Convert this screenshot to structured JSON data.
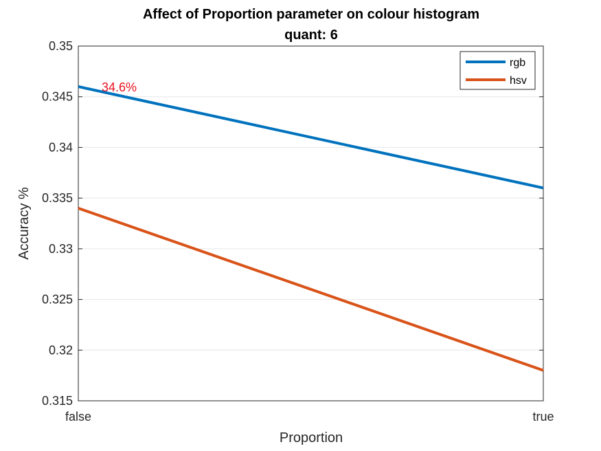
{
  "chart_data": {
    "type": "line",
    "title": "Affect of Proportion parameter on colour histogram",
    "subtitle": "quant: 6",
    "xlabel": "Proportion",
    "ylabel": "Accuracy %",
    "categories": [
      "false",
      "true"
    ],
    "ylim": [
      0.315,
      0.35
    ],
    "yticks": [
      0.315,
      0.32,
      0.325,
      0.33,
      0.335,
      0.34,
      0.345,
      0.35
    ],
    "ytick_labels": [
      "0.315",
      "0.32",
      "0.325",
      "0.33",
      "0.335",
      "0.34",
      "0.345",
      "0.35"
    ],
    "grid": "horizontal",
    "legend_position": "top-right",
    "series": [
      {
        "name": "rgb",
        "values": [
          0.346,
          0.336
        ],
        "color": "#0072BD"
      },
      {
        "name": "hsv",
        "values": [
          0.334,
          0.318
        ],
        "color": "#D95319"
      }
    ],
    "annotations": [
      {
        "text": "34.6%",
        "x": "false",
        "y": 0.346,
        "color": "#E8101E"
      }
    ]
  }
}
